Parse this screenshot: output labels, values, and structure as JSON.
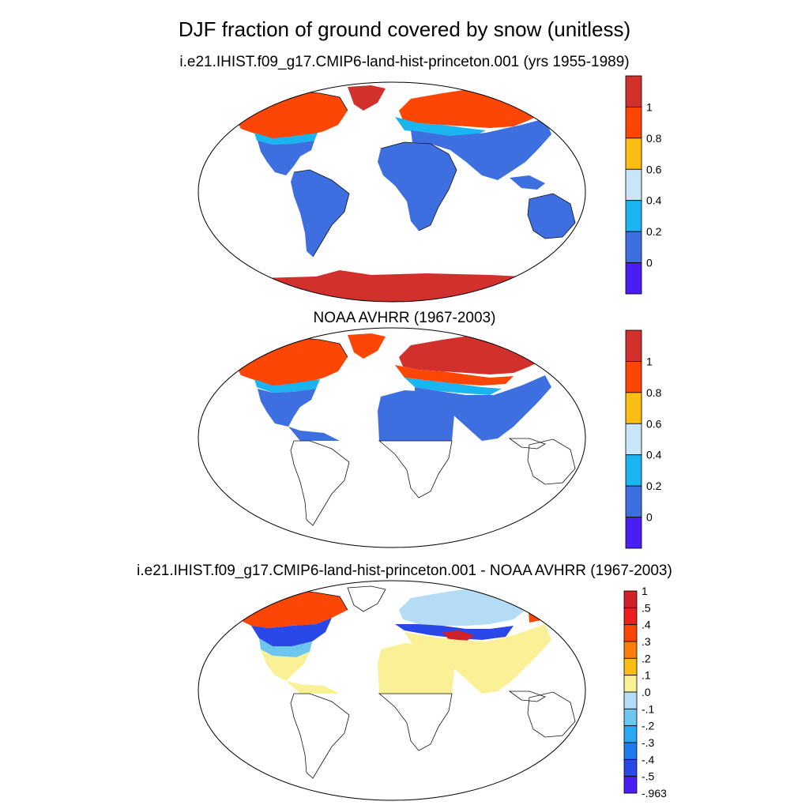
{
  "figure": {
    "title": "DJF fraction of ground covered by snow (unitless)"
  },
  "colors": {
    "purple": "#4a1df2",
    "blue": "#3e6fe0",
    "cyan": "#1ab4f0",
    "lightblue": "#c8e6f8",
    "yellow": "#f9bd14",
    "orange": "#fc4606",
    "red": "#d2302c",
    "paleyellow": "#faf196",
    "coastline": "#111111"
  },
  "panels": [
    {
      "id": "model",
      "subtitle": "i.e21.IHIST.f09_g17.CMIP6-land-hist-princeton.001 (yrs 1955-1989)",
      "colorbar_labels": [
        "1",
        "0.8",
        "0.6",
        "0.4",
        "0.2",
        "0"
      ],
      "colorbar_colors": [
        "#d2302c",
        "#fc4606",
        "#f9bd14",
        "#c8e6f8",
        "#1ab4f0",
        "#3e6fe0",
        "#4a1df2"
      ]
    },
    {
      "id": "obs",
      "subtitle": "NOAA AVHRR (1967-2003)",
      "colorbar_labels": [
        "1",
        "0.8",
        "0.6",
        "0.4",
        "0.2",
        "0"
      ],
      "colorbar_colors": [
        "#d2302c",
        "#fc4606",
        "#f9bd14",
        "#c8e6f8",
        "#1ab4f0",
        "#3e6fe0",
        "#4a1df2"
      ]
    },
    {
      "id": "diff",
      "subtitle": "i.e21.IHIST.f09_g17.CMIP6-land-hist-princeton.001 - NOAA AVHRR (1967-2003)",
      "colorbar_labels": [
        "1",
        ".5",
        ".4",
        ".3",
        ".2",
        ".1",
        ".0",
        "-.1",
        "-.2",
        "-.3",
        "-.4",
        "-.5",
        "-.963"
      ],
      "colorbar_colors": [
        "#d0202a",
        "#ee1e1e",
        "#fc4606",
        "#fc7e0a",
        "#f9bd14",
        "#faf196",
        "#b4dcf4",
        "#6cc6f0",
        "#2aa8f2",
        "#1e7cf0",
        "#2a48e8",
        "#4a1df2"
      ]
    }
  ]
}
